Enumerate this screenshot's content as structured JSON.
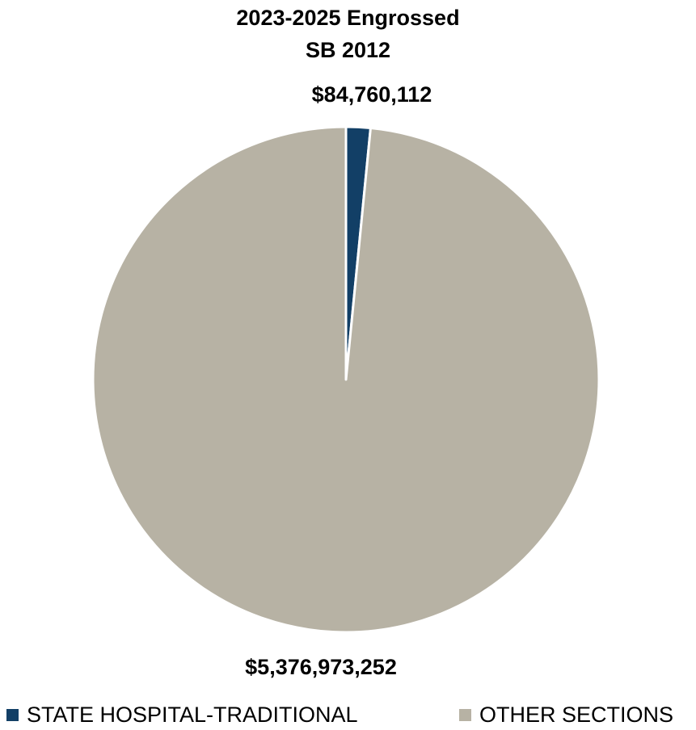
{
  "chart_data": {
    "type": "pie",
    "title_lines": [
      "2023-2025 Engrossed",
      "SB 2012"
    ],
    "slices": [
      {
        "label": "STATE HOSPITAL-TRADITIONAL",
        "value": 84760112,
        "value_label": "$84,760,112",
        "color": "#123f66"
      },
      {
        "label": "OTHER SECTIONS",
        "value": 5376973252,
        "value_label": "$5,376,973,252",
        "color": "#b7b2a4"
      }
    ],
    "legend_position": "bottom"
  }
}
